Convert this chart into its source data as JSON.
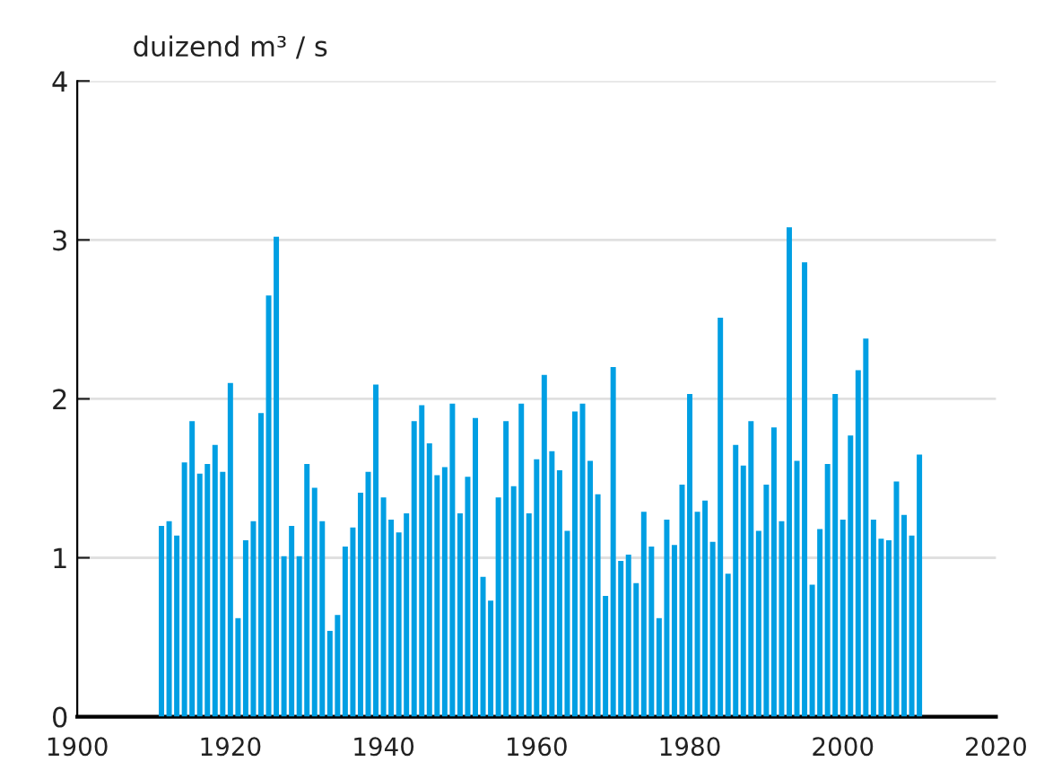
{
  "chart_data": {
    "type": "bar",
    "ylabel": "duizend m³ / s",
    "x": [
      1911,
      1912,
      1913,
      1914,
      1915,
      1916,
      1917,
      1918,
      1919,
      1920,
      1921,
      1922,
      1923,
      1924,
      1925,
      1926,
      1927,
      1928,
      1929,
      1930,
      1931,
      1932,
      1933,
      1934,
      1935,
      1936,
      1937,
      1938,
      1939,
      1940,
      1941,
      1942,
      1943,
      1944,
      1945,
      1946,
      1947,
      1948,
      1949,
      1950,
      1951,
      1952,
      1953,
      1954,
      1955,
      1956,
      1957,
      1958,
      1959,
      1960,
      1961,
      1962,
      1963,
      1964,
      1965,
      1966,
      1967,
      1968,
      1969,
      1970,
      1971,
      1972,
      1973,
      1974,
      1975,
      1976,
      1977,
      1978,
      1979,
      1980,
      1981,
      1982,
      1983,
      1984,
      1985,
      1986,
      1987,
      1988,
      1989,
      1990,
      1991,
      1992,
      1993,
      1994,
      1995,
      1996,
      1997,
      1998,
      1999,
      2000,
      2001,
      2002,
      2003,
      2004,
      2005,
      2006,
      2007,
      2008,
      2009,
      2010
    ],
    "values": [
      1.2,
      1.23,
      1.14,
      1.6,
      1.86,
      1.53,
      1.59,
      1.71,
      1.54,
      2.1,
      0.62,
      1.11,
      1.23,
      1.91,
      2.65,
      3.02,
      1.01,
      1.2,
      1.01,
      1.59,
      1.44,
      1.23,
      0.54,
      0.64,
      1.07,
      1.19,
      1.41,
      1.54,
      2.09,
      1.38,
      1.24,
      1.16,
      1.28,
      1.86,
      1.96,
      1.72,
      1.52,
      1.57,
      1.97,
      1.28,
      1.51,
      1.88,
      0.88,
      0.73,
      1.38,
      1.86,
      1.45,
      1.97,
      1.28,
      1.62,
      2.15,
      1.67,
      1.55,
      1.17,
      1.92,
      1.97,
      1.61,
      1.4,
      0.76,
      2.2,
      0.98,
      1.02,
      0.84,
      1.29,
      1.07,
      0.62,
      1.24,
      1.08,
      1.46,
      2.03,
      1.29,
      1.36,
      1.1,
      2.51,
      0.9,
      1.71,
      1.58,
      1.86,
      1.17,
      1.46,
      1.82,
      1.23,
      3.08,
      1.61,
      2.86,
      0.83,
      1.18,
      1.59,
      2.03,
      1.24,
      1.77,
      2.18,
      2.38,
      1.24,
      1.12,
      1.11,
      1.48,
      1.27,
      1.14,
      1.65
    ],
    "color": "#009fe3",
    "xlim": [
      1900,
      2020
    ],
    "xticks": [
      1900,
      1920,
      1940,
      1960,
      1980,
      2000,
      2020
    ],
    "ylim": [
      0,
      4
    ],
    "yticks": [
      0,
      1,
      2,
      3,
      4
    ],
    "grid": "y"
  }
}
